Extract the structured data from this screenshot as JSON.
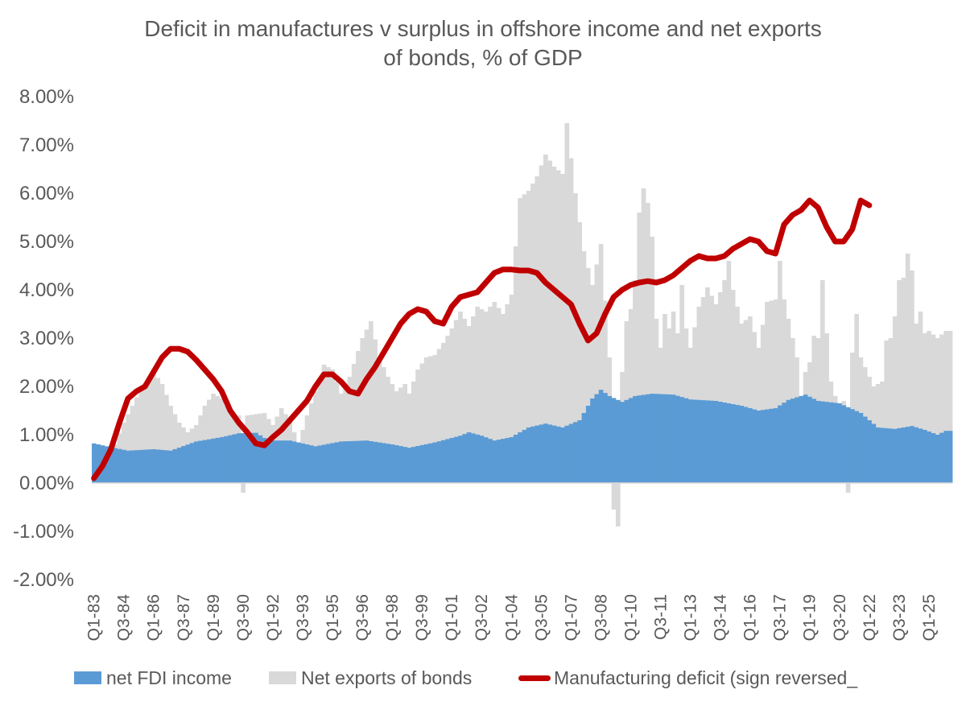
{
  "chart_data": {
    "type": "bar",
    "title_lines": [
      "Deficit in manufactures v surplus in offshore income and net exports",
      "of bonds, % of GDP"
    ],
    "xlabel": "",
    "ylabel": "",
    "ylim": [
      -0.02,
      0.08
    ],
    "y_ticks": [
      "8.00%",
      "7.00%",
      "6.00%",
      "5.00%",
      "4.00%",
      "3.00%",
      "2.00%",
      "1.00%",
      "0.00%",
      "-1.00%",
      "-2.00%"
    ],
    "x_ticks": [
      "Q1-83",
      "Q3-84",
      "Q1-86",
      "Q3-87",
      "Q1-89",
      "Q3-90",
      "Q1-92",
      "Q3-93",
      "Q1-95",
      "Q3-96",
      "Q1-98",
      "Q3-99",
      "Q1-01",
      "Q3-02",
      "Q1-04",
      "Q3-05",
      "Q1-07",
      "Q3-08",
      "Q1-10",
      "Q3-11",
      "Q1-13",
      "Q3-14",
      "Q1-16",
      "Q3-17",
      "Q1-19",
      "Q3-20",
      "Q1-22",
      "Q3-23",
      "Q1-25"
    ],
    "period": {
      "start": "Q1-83",
      "end": "Q1-25",
      "frequency": "quarterly"
    },
    "grid": false,
    "legend_position": "bottom",
    "colors": {
      "fdi": "#5b9bd5",
      "bonds": "#d9d9d9",
      "manufacturing": "#c00000"
    },
    "series": [
      {
        "name": "net FDI income",
        "type": "area",
        "knots": [
          [
            0,
            0.82
          ],
          [
            4,
            0.74
          ],
          [
            8,
            0.67
          ],
          [
            14,
            0.7
          ],
          [
            18,
            0.67
          ],
          [
            24,
            0.86
          ],
          [
            30,
            0.95
          ],
          [
            34,
            1.03
          ],
          [
            38,
            1.04
          ],
          [
            41,
            0.88
          ],
          [
            46,
            0.88
          ],
          [
            52,
            0.76
          ],
          [
            58,
            0.86
          ],
          [
            64,
            0.88
          ],
          [
            70,
            0.8
          ],
          [
            74,
            0.73
          ],
          [
            80,
            0.84
          ],
          [
            86,
            0.98
          ],
          [
            88,
            1.05
          ],
          [
            91,
            0.98
          ],
          [
            94,
            0.88
          ],
          [
            98,
            0.95
          ],
          [
            102,
            1.15
          ],
          [
            106,
            1.23
          ],
          [
            110,
            1.15
          ],
          [
            114,
            1.3
          ],
          [
            117,
            1.75
          ],
          [
            119,
            1.93
          ],
          [
            121,
            1.8
          ],
          [
            124,
            1.68
          ],
          [
            127,
            1.8
          ],
          [
            131,
            1.85
          ],
          [
            136,
            1.83
          ],
          [
            140,
            1.73
          ],
          [
            146,
            1.7
          ],
          [
            152,
            1.6
          ],
          [
            156,
            1.5
          ],
          [
            160,
            1.55
          ],
          [
            163,
            1.72
          ],
          [
            167,
            1.83
          ],
          [
            170,
            1.7
          ],
          [
            175,
            1.65
          ],
          [
            180,
            1.45
          ],
          [
            184,
            1.15
          ],
          [
            188,
            1.12
          ],
          [
            192,
            1.18
          ],
          [
            195,
            1.1
          ],
          [
            198,
            1.0
          ],
          [
            200,
            1.08
          ],
          [
            201,
            1.08
          ]
        ]
      },
      {
        "name": "Net exports of bonds",
        "type": "bar",
        "knots": [
          [
            0,
            0.8
          ],
          [
            3,
            0.7
          ],
          [
            5,
            0.8
          ],
          [
            7,
            1.25
          ],
          [
            9,
            1.6
          ],
          [
            11,
            1.95
          ],
          [
            14,
            2.3
          ],
          [
            16,
            2.05
          ],
          [
            18,
            1.6
          ],
          [
            20,
            1.25
          ],
          [
            22,
            1.05
          ],
          [
            24,
            1.2
          ],
          [
            26,
            1.6
          ],
          [
            28,
            1.85
          ],
          [
            30,
            1.75
          ],
          [
            32,
            1.45
          ],
          [
            34,
            1.4
          ],
          [
            35,
            -0.2
          ],
          [
            36,
            1.4
          ],
          [
            40,
            1.45
          ],
          [
            42,
            1.2
          ],
          [
            44,
            1.55
          ],
          [
            46,
            1.3
          ],
          [
            48,
            0.8
          ],
          [
            50,
            1.4
          ],
          [
            52,
            1.9
          ],
          [
            54,
            2.45
          ],
          [
            56,
            2.35
          ],
          [
            58,
            1.85
          ],
          [
            60,
            2.2
          ],
          [
            63,
            3.0
          ],
          [
            65,
            3.35
          ],
          [
            67,
            2.6
          ],
          [
            69,
            2.2
          ],
          [
            71,
            1.9
          ],
          [
            73,
            2.05
          ],
          [
            74,
            1.85
          ],
          [
            76,
            2.35
          ],
          [
            78,
            2.6
          ],
          [
            80,
            2.65
          ],
          [
            82,
            2.9
          ],
          [
            84,
            3.2
          ],
          [
            86,
            3.55
          ],
          [
            88,
            3.25
          ],
          [
            90,
            3.65
          ],
          [
            92,
            3.55
          ],
          [
            94,
            3.75
          ],
          [
            96,
            3.5
          ],
          [
            98,
            3.9
          ],
          [
            100,
            5.9
          ],
          [
            102,
            6.05
          ],
          [
            104,
            6.35
          ],
          [
            106,
            6.8
          ],
          [
            108,
            6.55
          ],
          [
            110,
            6.4
          ],
          [
            111,
            7.45
          ],
          [
            113,
            6.0
          ],
          [
            115,
            4.8
          ],
          [
            117,
            4.1
          ],
          [
            119,
            4.95
          ],
          [
            121,
            2.6
          ],
          [
            122,
            -0.55
          ],
          [
            123,
            -0.9
          ],
          [
            124,
            2.3
          ],
          [
            125,
            3.35
          ],
          [
            126,
            3.6
          ],
          [
            127,
            4.2
          ],
          [
            128,
            5.6
          ],
          [
            129,
            6.1
          ],
          [
            130,
            5.8
          ],
          [
            131,
            5.1
          ],
          [
            132,
            3.4
          ],
          [
            133,
            2.8
          ],
          [
            134,
            3.5
          ],
          [
            135,
            3.2
          ],
          [
            136,
            3.55
          ],
          [
            137,
            3.1
          ],
          [
            138,
            4.1
          ],
          [
            139,
            3.2
          ],
          [
            140,
            2.8
          ],
          [
            142,
            3.65
          ],
          [
            144,
            4.05
          ],
          [
            146,
            3.7
          ],
          [
            148,
            4.2
          ],
          [
            149,
            4.6
          ],
          [
            150,
            4.0
          ],
          [
            152,
            3.3
          ],
          [
            154,
            3.45
          ],
          [
            156,
            2.8
          ],
          [
            158,
            3.75
          ],
          [
            160,
            3.8
          ],
          [
            161,
            4.6
          ],
          [
            162,
            3.8
          ],
          [
            163,
            3.4
          ],
          [
            165,
            2.6
          ],
          [
            166,
            1.8
          ],
          [
            167,
            2.3
          ],
          [
            168,
            2.5
          ],
          [
            169,
            3.05
          ],
          [
            170,
            3.0
          ],
          [
            171,
            4.2
          ],
          [
            172,
            3.1
          ],
          [
            173,
            2.1
          ],
          [
            174,
            1.8
          ],
          [
            175,
            1.6
          ],
          [
            176,
            1.7
          ],
          [
            177,
            -0.2
          ],
          [
            178,
            2.7
          ],
          [
            179,
            3.5
          ],
          [
            180,
            2.6
          ],
          [
            181,
            2.4
          ],
          [
            182,
            2.2
          ],
          [
            183,
            2.0
          ],
          [
            184,
            2.05
          ],
          [
            185,
            2.1
          ],
          [
            186,
            2.95
          ],
          [
            187,
            3.0
          ],
          [
            188,
            3.45
          ],
          [
            189,
            4.2
          ],
          [
            190,
            4.25
          ],
          [
            191,
            4.75
          ],
          [
            192,
            4.4
          ],
          [
            193,
            3.3
          ],
          [
            194,
            3.55
          ],
          [
            195,
            3.1
          ],
          [
            196,
            3.15
          ],
          [
            198,
            3.0
          ],
          [
            200,
            3.15
          ],
          [
            201,
            3.15
          ]
        ]
      },
      {
        "name": "Manufacturing deficit (sign reversed_",
        "type": "line",
        "knots": [
          [
            0,
            0.1
          ],
          [
            2,
            0.35
          ],
          [
            4,
            0.7
          ],
          [
            6,
            1.25
          ],
          [
            8,
            1.75
          ],
          [
            10,
            1.9
          ],
          [
            12,
            2.0
          ],
          [
            14,
            2.3
          ],
          [
            16,
            2.6
          ],
          [
            18,
            2.78
          ],
          [
            20,
            2.78
          ],
          [
            22,
            2.72
          ],
          [
            24,
            2.55
          ],
          [
            26,
            2.35
          ],
          [
            28,
            2.15
          ],
          [
            30,
            1.9
          ],
          [
            32,
            1.5
          ],
          [
            34,
            1.25
          ],
          [
            36,
            1.05
          ],
          [
            38,
            0.82
          ],
          [
            40,
            0.78
          ],
          [
            42,
            0.95
          ],
          [
            44,
            1.1
          ],
          [
            46,
            1.3
          ],
          [
            48,
            1.5
          ],
          [
            50,
            1.7
          ],
          [
            52,
            2.0
          ],
          [
            54,
            2.25
          ],
          [
            56,
            2.25
          ],
          [
            58,
            2.1
          ],
          [
            60,
            1.9
          ],
          [
            62,
            1.85
          ],
          [
            64,
            2.15
          ],
          [
            66,
            2.4
          ],
          [
            68,
            2.7
          ],
          [
            70,
            3.0
          ],
          [
            72,
            3.3
          ],
          [
            74,
            3.5
          ],
          [
            76,
            3.6
          ],
          [
            78,
            3.55
          ],
          [
            80,
            3.35
          ],
          [
            82,
            3.3
          ],
          [
            84,
            3.65
          ],
          [
            86,
            3.85
          ],
          [
            88,
            3.9
          ],
          [
            90,
            3.95
          ],
          [
            92,
            4.15
          ],
          [
            94,
            4.35
          ],
          [
            96,
            4.42
          ],
          [
            98,
            4.42
          ],
          [
            100,
            4.4
          ],
          [
            102,
            4.4
          ],
          [
            104,
            4.35
          ],
          [
            106,
            4.15
          ],
          [
            108,
            4.0
          ],
          [
            110,
            3.85
          ],
          [
            112,
            3.7
          ],
          [
            114,
            3.3
          ],
          [
            116,
            2.95
          ],
          [
            118,
            3.1
          ],
          [
            120,
            3.5
          ],
          [
            122,
            3.85
          ],
          [
            124,
            4.0
          ],
          [
            126,
            4.1
          ],
          [
            128,
            4.15
          ],
          [
            130,
            4.18
          ],
          [
            132,
            4.15
          ],
          [
            134,
            4.2
          ],
          [
            136,
            4.3
          ],
          [
            138,
            4.45
          ],
          [
            140,
            4.6
          ],
          [
            142,
            4.7
          ],
          [
            144,
            4.65
          ],
          [
            146,
            4.65
          ],
          [
            148,
            4.7
          ],
          [
            150,
            4.85
          ],
          [
            152,
            4.95
          ],
          [
            154,
            5.05
          ],
          [
            156,
            5.0
          ],
          [
            158,
            4.8
          ],
          [
            160,
            4.75
          ],
          [
            162,
            5.35
          ],
          [
            164,
            5.55
          ],
          [
            166,
            5.65
          ],
          [
            168,
            5.85
          ],
          [
            170,
            5.7
          ],
          [
            172,
            5.3
          ],
          [
            174,
            5.0
          ],
          [
            176,
            5.0
          ],
          [
            178,
            5.25
          ],
          [
            180,
            5.85
          ],
          [
            182,
            5.75
          ]
        ]
      }
    ]
  },
  "legend": {
    "fdi_label": "net FDI income",
    "bonds_label": "Net exports of bonds",
    "manufacturing_label": "Manufacturing deficit (sign reversed_"
  }
}
